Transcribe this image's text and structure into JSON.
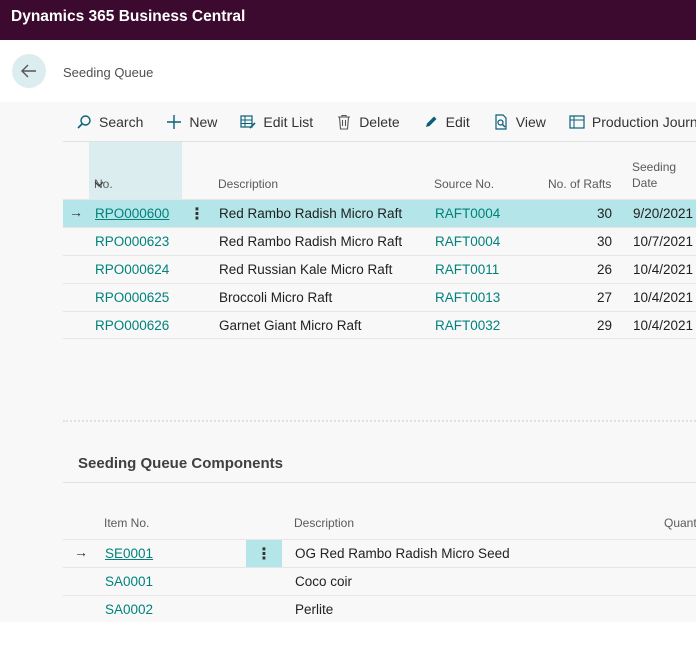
{
  "app": {
    "title": "Dynamics 365 Business Central"
  },
  "page": {
    "title": "Seeding Queue"
  },
  "actions": [
    {
      "label": "Search",
      "icon": "search-icon"
    },
    {
      "label": "New",
      "icon": "plus-icon"
    },
    {
      "label": "Edit List",
      "icon": "edit-list-icon"
    },
    {
      "label": "Delete",
      "icon": "trash-icon"
    },
    {
      "label": "Edit",
      "icon": "pencil-icon"
    },
    {
      "label": "View",
      "icon": "view-icon"
    },
    {
      "label": "Production Journal",
      "icon": "journal-icon"
    }
  ],
  "grid": {
    "columns": {
      "no": "No.",
      "description": "Description",
      "source_no": "Source No.",
      "rafts": "No. of Rafts",
      "seeding_date_1": "Seeding",
      "seeding_date_2": "Date"
    },
    "rows": [
      {
        "no": "RPO000600",
        "description": "Red Rambo Radish Micro Raft",
        "source_no": "RAFT0004",
        "rafts": "30",
        "date": "9/20/2021"
      },
      {
        "no": "RPO000623",
        "description": "Red Rambo Radish Micro Raft",
        "source_no": "RAFT0004",
        "rafts": "30",
        "date": "10/7/2021"
      },
      {
        "no": "RPO000624",
        "description": "Red Russian Kale Micro Raft",
        "source_no": "RAFT0011",
        "rafts": "26",
        "date": "10/4/2021"
      },
      {
        "no": "RPO000625",
        "description": "Broccoli Micro Raft",
        "source_no": "RAFT0013",
        "rafts": "27",
        "date": "10/4/2021"
      },
      {
        "no": "RPO000626",
        "description": "Garnet Giant Micro Raft",
        "source_no": "RAFT0032",
        "rafts": "29",
        "date": "10/4/2021"
      }
    ]
  },
  "components": {
    "title": "Seeding Queue Components",
    "columns": {
      "item_no": "Item No.",
      "description": "Description",
      "quantity": "Quant"
    },
    "rows": [
      {
        "item_no": "SE0001",
        "description": "OG Red Rambo Radish Micro Seed"
      },
      {
        "item_no": "SA0001",
        "description": "Coco coir"
      },
      {
        "item_no": "SA0002",
        "description": "Perlite"
      }
    ]
  },
  "colors": {
    "topbar": "#3b0a2e",
    "accent": "#00827c",
    "selected": "#b4e5e8"
  }
}
